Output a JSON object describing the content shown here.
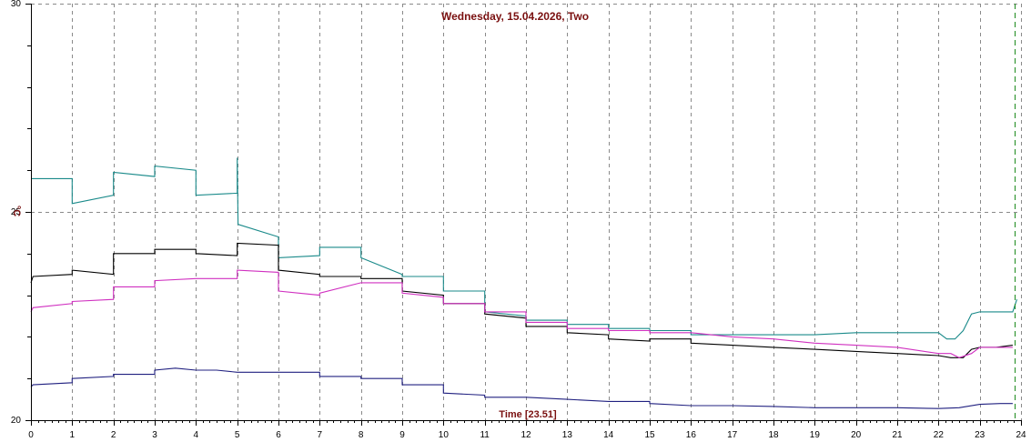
{
  "chart_data": {
    "type": "line",
    "title": "Wednesday, 15.04.2026, Two",
    "xlabel": "Time [23.51]",
    "ylabel": "°C",
    "xlim": [
      0,
      24
    ],
    "ylim": [
      20,
      30
    ],
    "x_ticks": [
      "0",
      "1",
      "2",
      "3",
      "4",
      "5",
      "6",
      "7",
      "8",
      "9",
      "10",
      "11",
      "12",
      "13",
      "14",
      "15",
      "16",
      "17",
      "18",
      "19",
      "20",
      "21",
      "22",
      "23",
      "24"
    ],
    "y_ticks": [
      {
        "value": 20,
        "label": "20"
      },
      {
        "value": 25,
        "label": "25"
      },
      {
        "value": 30,
        "label": "30"
      }
    ],
    "grid": true,
    "marker_time": 23.85,
    "colors": {
      "grid": "#8a8a8a",
      "title": "#7a1010",
      "marker": "#1a8a1a"
    },
    "series": [
      {
        "color": "#1a8a8a",
        "points": [
          [
            0,
            25.8
          ],
          [
            1,
            25.8
          ],
          [
            1,
            25.2
          ],
          [
            2,
            25.4
          ],
          [
            2,
            25.95
          ],
          [
            3,
            25.85
          ],
          [
            3,
            26.1
          ],
          [
            4,
            26.0
          ],
          [
            4,
            25.4
          ],
          [
            5,
            25.45
          ],
          [
            5,
            26.3
          ],
          [
            5.02,
            24.7
          ],
          [
            6,
            24.4
          ],
          [
            6,
            23.9
          ],
          [
            7,
            23.95
          ],
          [
            7,
            24.15
          ],
          [
            8,
            24.15
          ],
          [
            8,
            23.9
          ],
          [
            9,
            23.5
          ],
          [
            9,
            23.45
          ],
          [
            10,
            23.45
          ],
          [
            10,
            23.1
          ],
          [
            11,
            23.1
          ],
          [
            11,
            22.6
          ],
          [
            12,
            22.5
          ],
          [
            12,
            22.4
          ],
          [
            13,
            22.4
          ],
          [
            13,
            22.3
          ],
          [
            14,
            22.3
          ],
          [
            14,
            22.2
          ],
          [
            15,
            22.2
          ],
          [
            15,
            22.15
          ],
          [
            16,
            22.15
          ],
          [
            16,
            22.05
          ],
          [
            17,
            22.05
          ],
          [
            18,
            22.05
          ],
          [
            19,
            22.05
          ],
          [
            20,
            22.1
          ],
          [
            21,
            22.1
          ],
          [
            22,
            22.1
          ],
          [
            22.2,
            21.95
          ],
          [
            22.4,
            21.95
          ],
          [
            22.6,
            22.15
          ],
          [
            22.8,
            22.55
          ],
          [
            23,
            22.6
          ],
          [
            23.8,
            22.6
          ],
          [
            23.9,
            22.9
          ]
        ]
      },
      {
        "color": "#000000",
        "points": [
          [
            0,
            23.3
          ],
          [
            0.05,
            23.45
          ],
          [
            1,
            23.5
          ],
          [
            1,
            23.6
          ],
          [
            2,
            23.5
          ],
          [
            2,
            24.0
          ],
          [
            3,
            24.0
          ],
          [
            3,
            24.1
          ],
          [
            4,
            24.1
          ],
          [
            4,
            24.0
          ],
          [
            5,
            23.95
          ],
          [
            5,
            24.25
          ],
          [
            6,
            24.2
          ],
          [
            6,
            23.6
          ],
          [
            7,
            23.5
          ],
          [
            7,
            23.45
          ],
          [
            8,
            23.45
          ],
          [
            8,
            23.4
          ],
          [
            9,
            23.4
          ],
          [
            9,
            23.1
          ],
          [
            10,
            23.0
          ],
          [
            10,
            22.8
          ],
          [
            11,
            22.8
          ],
          [
            11,
            22.55
          ],
          [
            12,
            22.45
          ],
          [
            12,
            22.25
          ],
          [
            13,
            22.25
          ],
          [
            13,
            22.1
          ],
          [
            14,
            22.05
          ],
          [
            14,
            21.95
          ],
          [
            15,
            21.9
          ],
          [
            15,
            21.95
          ],
          [
            16,
            21.95
          ],
          [
            16,
            21.85
          ],
          [
            17,
            21.8
          ],
          [
            18,
            21.75
          ],
          [
            19,
            21.7
          ],
          [
            20,
            21.65
          ],
          [
            21,
            21.6
          ],
          [
            22,
            21.55
          ],
          [
            22.3,
            21.5
          ],
          [
            22.6,
            21.5
          ],
          [
            22.8,
            21.7
          ],
          [
            23,
            21.75
          ],
          [
            23.4,
            21.75
          ],
          [
            23.8,
            21.8
          ]
        ]
      },
      {
        "color": "#d030c0",
        "points": [
          [
            0,
            22.6
          ],
          [
            0.05,
            22.7
          ],
          [
            1,
            22.8
          ],
          [
            1,
            22.85
          ],
          [
            2,
            22.9
          ],
          [
            2,
            23.2
          ],
          [
            3,
            23.2
          ],
          [
            3,
            23.35
          ],
          [
            4,
            23.4
          ],
          [
            5,
            23.4
          ],
          [
            5,
            23.6
          ],
          [
            6,
            23.55
          ],
          [
            6,
            23.1
          ],
          [
            7,
            23.0
          ],
          [
            7,
            23.05
          ],
          [
            8,
            23.3
          ],
          [
            9,
            23.3
          ],
          [
            9,
            23.05
          ],
          [
            10,
            22.95
          ],
          [
            10,
            22.8
          ],
          [
            11,
            22.8
          ],
          [
            11,
            22.6
          ],
          [
            12,
            22.6
          ],
          [
            12,
            22.35
          ],
          [
            13,
            22.35
          ],
          [
            13,
            22.2
          ],
          [
            14,
            22.2
          ],
          [
            14,
            22.15
          ],
          [
            15,
            22.15
          ],
          [
            15,
            22.1
          ],
          [
            16,
            22.1
          ],
          [
            17,
            22.0
          ],
          [
            18,
            21.95
          ],
          [
            19,
            21.85
          ],
          [
            20,
            21.8
          ],
          [
            21,
            21.75
          ],
          [
            22,
            21.6
          ],
          [
            22.3,
            21.6
          ],
          [
            22.5,
            21.5
          ],
          [
            22.8,
            21.6
          ],
          [
            23,
            21.75
          ],
          [
            23.8,
            21.75
          ]
        ]
      },
      {
        "color": "#202080",
        "points": [
          [
            0,
            20.8
          ],
          [
            0.05,
            20.85
          ],
          [
            1,
            20.9
          ],
          [
            1,
            21.0
          ],
          [
            2,
            21.05
          ],
          [
            2,
            21.1
          ],
          [
            3,
            21.1
          ],
          [
            3,
            21.2
          ],
          [
            3.5,
            21.25
          ],
          [
            4,
            21.2
          ],
          [
            4.5,
            21.2
          ],
          [
            5,
            21.15
          ],
          [
            6,
            21.15
          ],
          [
            7,
            21.15
          ],
          [
            7,
            21.05
          ],
          [
            8,
            21.05
          ],
          [
            8,
            21.0
          ],
          [
            9,
            21.0
          ],
          [
            9,
            20.85
          ],
          [
            10,
            20.85
          ],
          [
            10,
            20.65
          ],
          [
            11,
            20.6
          ],
          [
            11,
            20.55
          ],
          [
            12,
            20.55
          ],
          [
            13,
            20.5
          ],
          [
            14,
            20.45
          ],
          [
            15,
            20.45
          ],
          [
            15,
            20.4
          ],
          [
            16,
            20.35
          ],
          [
            17,
            20.35
          ],
          [
            18,
            20.33
          ],
          [
            19,
            20.3
          ],
          [
            20,
            20.3
          ],
          [
            21,
            20.3
          ],
          [
            22,
            20.28
          ],
          [
            22.5,
            20.3
          ],
          [
            23,
            20.38
          ],
          [
            23.5,
            20.4
          ],
          [
            23.8,
            20.4
          ]
        ]
      }
    ]
  }
}
